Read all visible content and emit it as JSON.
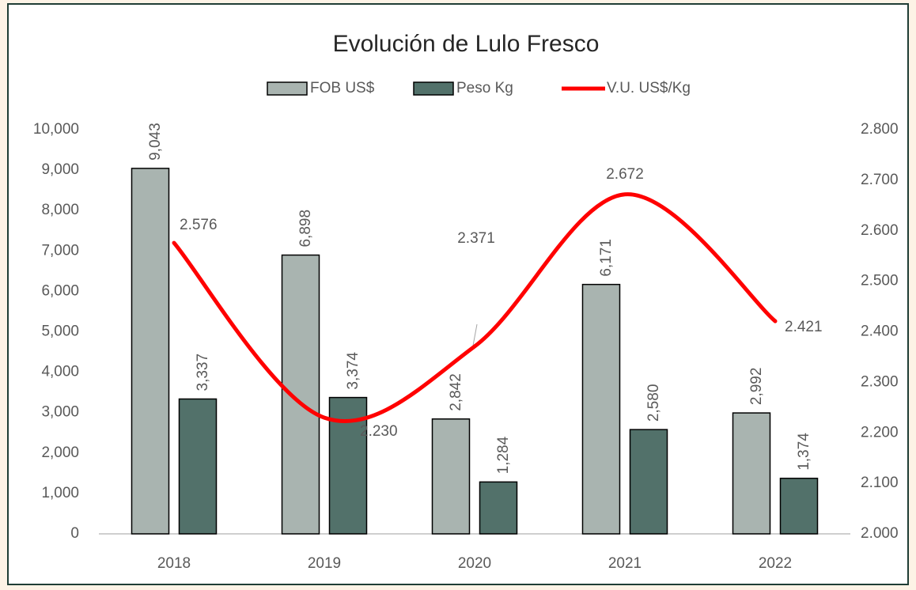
{
  "chart_data": {
    "type": "bar",
    "title": "Evolución de Lulo Fresco",
    "categories": [
      "2018",
      "2019",
      "2020",
      "2021",
      "2022"
    ],
    "series": [
      {
        "name": "FOB US$",
        "type": "bar",
        "color": "#a9b4b0",
        "values": [
          9043,
          6898,
          2842,
          6171,
          2992
        ],
        "value_labels": [
          "9,043",
          "6,898",
          "2,842",
          "6,171",
          "2,992"
        ]
      },
      {
        "name": "Peso Kg",
        "type": "bar",
        "color": "#52716a",
        "values": [
          3337,
          3374,
          1284,
          2580,
          1374
        ],
        "value_labels": [
          "3,337",
          "3,374",
          "1,284",
          "2,580",
          "1,374"
        ]
      },
      {
        "name": "V.U. US$/Kg",
        "type": "line",
        "axis": "y2",
        "color": "#ff0000",
        "values": [
          2.576,
          2.23,
          2.371,
          2.672,
          2.421
        ],
        "value_labels": [
          "2.576",
          "2.230",
          "2.371",
          "2.672",
          "2.421"
        ]
      }
    ],
    "ylim": [
      0,
      10000
    ],
    "yticks": [
      0,
      {
        "value": 1000,
        "label": "1,000"
      },
      {
        "value": 2000,
        "label": "2,000"
      },
      {
        "value": 3000,
        "label": "3,000"
      },
      {
        "value": 4000,
        "label": "4,000"
      },
      {
        "value": 5000,
        "label": "5,000"
      },
      {
        "value": 6000,
        "label": "6,000"
      },
      {
        "value": 7000,
        "label": "7,000"
      },
      {
        "value": 8000,
        "label": "8,000"
      },
      {
        "value": 9000,
        "label": "9,000"
      },
      {
        "value": 10000,
        "label": "10,000"
      }
    ],
    "y2lim": [
      2,
      2.8
    ],
    "y2ticks": [
      {
        "value": 2,
        "label": "2.000"
      },
      {
        "value": 2.1,
        "label": "2.100"
      },
      {
        "value": 2.2,
        "label": "2.200"
      },
      {
        "value": 2.3,
        "label": "2.300"
      },
      {
        "value": 2.4,
        "label": "2.400"
      },
      {
        "value": 2.5,
        "label": "2.500"
      },
      {
        "value": 2.6,
        "label": "2.600"
      },
      {
        "value": 2.7,
        "label": "2.700"
      },
      {
        "value": 2.8,
        "label": "2.800"
      }
    ],
    "grid": false,
    "legend": "top"
  }
}
